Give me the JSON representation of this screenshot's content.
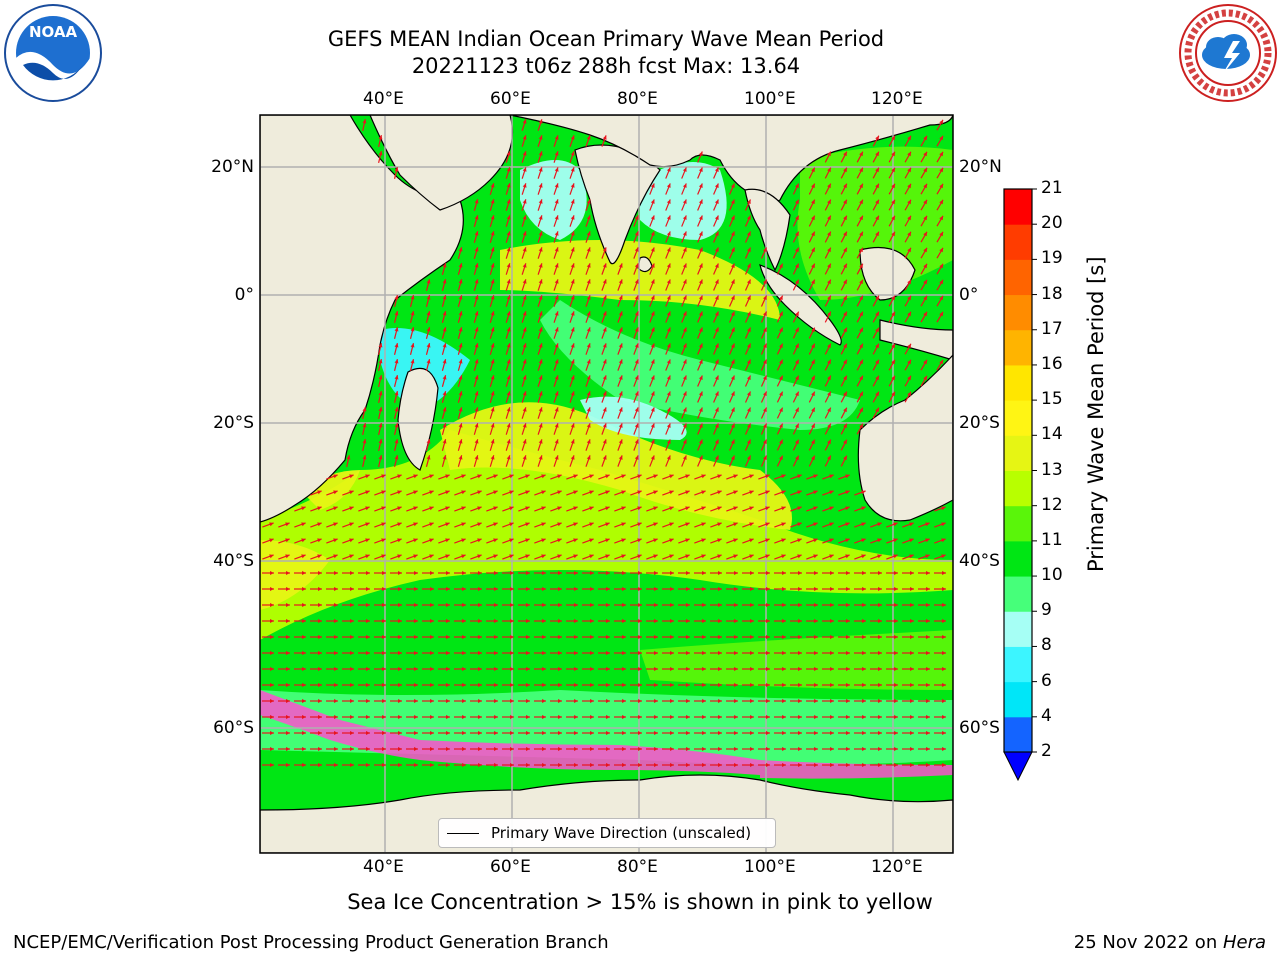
{
  "header": {
    "title_line1": "GEFS MEAN Indian Ocean Primary Wave Mean Period",
    "title_line2": "20221123 t06z 288h fcst   Max: 13.64"
  },
  "logos": {
    "left": {
      "icon": "noaa-logo",
      "text": "NOAA"
    },
    "right": {
      "icon": "national-weather-service-logo",
      "text": "NATIONAL WEATHER SERVICE"
    }
  },
  "map": {
    "lon_labels": [
      "40°E",
      "60°E",
      "80°E",
      "100°E",
      "120°E"
    ],
    "lat_labels": [
      "20°N",
      "0°",
      "20°S",
      "40°S",
      "60°S"
    ],
    "colors": {
      "land": "#efecdc",
      "grid": "#b0b0b0",
      "arrow": "#e8141e",
      "sea_ice": "#ff4fd0"
    }
  },
  "colorbar": {
    "title": "Primary Wave Mean Period [s]",
    "ticks": [
      "2",
      "4",
      "6",
      "8",
      "9",
      "10",
      "11",
      "12",
      "13",
      "14",
      "15",
      "16",
      "17",
      "18",
      "19",
      "20",
      "21"
    ],
    "colors": [
      "#1464ff",
      "#00e6f8",
      "#3cf5ff",
      "#a6fff5",
      "#46ff7a",
      "#00e614",
      "#5af50a",
      "#b8ff00",
      "#e6f514",
      "#fff514",
      "#ffe600",
      "#ffb400",
      "#ff8c00",
      "#ff6400",
      "#ff3c00",
      "#ff0000"
    ],
    "extend_color": "#0000ff"
  },
  "legend": {
    "label": "Primary Wave Direction (unscaled)"
  },
  "notes": {
    "sea_ice": "Sea Ice Concentration > 15% is shown in pink to yellow",
    "credit": "NCEP/EMC/Verification Post Processing Product Generation Branch",
    "date": "25 Nov 2022 on ",
    "machine": "Hera"
  }
}
